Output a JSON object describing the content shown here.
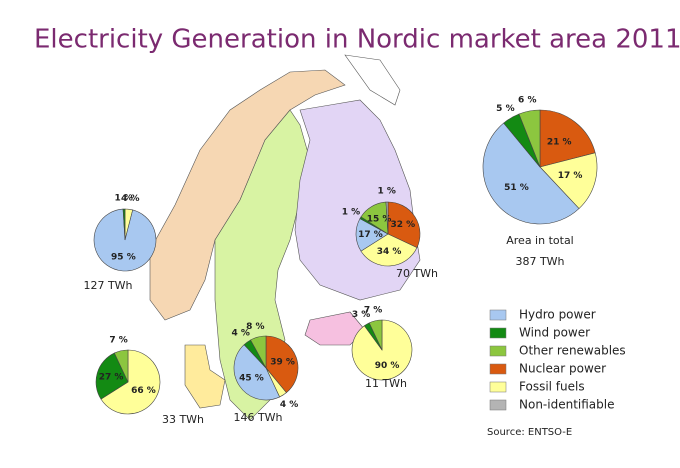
{
  "title": "Electricity Generation in Nordic market area 2011",
  "legend": {
    "categories": [
      "Hydro power",
      "Wind power",
      "Other renewables",
      "Nuclear power",
      "Fossil fuels",
      "Non-identifiable"
    ],
    "colors": [
      "#a8c8f0",
      "#138a13",
      "#8cc63f",
      "#d95a10",
      "#ffff99",
      "#b4b4b4"
    ]
  },
  "source": "Source: ENTSO-E",
  "chart_data": [
    {
      "type": "pie",
      "total_label": "127 TWh",
      "values": [
        95,
        1,
        null,
        null,
        4,
        null
      ],
      "value_labels": [
        "95 %",
        "1 %",
        null,
        null,
        "4 %",
        null
      ]
    },
    {
      "type": "pie",
      "total_label": "70 TWh",
      "values": [
        17,
        1,
        15,
        32,
        34,
        1
      ],
      "value_labels": [
        "17 %",
        "1 %",
        "15 %",
        "32 %",
        "34 %",
        "1 %"
      ]
    },
    {
      "type": "pie",
      "total_label": "146 TWh",
      "values": [
        45,
        4,
        8,
        39,
        4,
        null
      ],
      "value_labels": [
        "45 %",
        "4 %",
        "8 %",
        "39 %",
        "4 %",
        null
      ]
    },
    {
      "type": "pie",
      "total_label": "33 TWh",
      "values": [
        null,
        27,
        7,
        null,
        66,
        null
      ],
      "value_labels": [
        null,
        "27 %",
        "7 %",
        null,
        "66 %",
        null
      ]
    },
    {
      "type": "pie",
      "total_label": "11 TWh",
      "values": [
        null,
        3,
        7,
        null,
        90,
        null
      ],
      "value_labels": [
        null,
        "3 %",
        "7 %",
        null,
        "90 %",
        null
      ]
    },
    {
      "type": "pie",
      "caption": "Area in total",
      "total_label": "387 TWh",
      "values": [
        51,
        5,
        6,
        21,
        17,
        null
      ],
      "value_labels": [
        "51 %",
        "5 %",
        "6 %",
        "21 %",
        "17 %",
        null
      ]
    }
  ]
}
